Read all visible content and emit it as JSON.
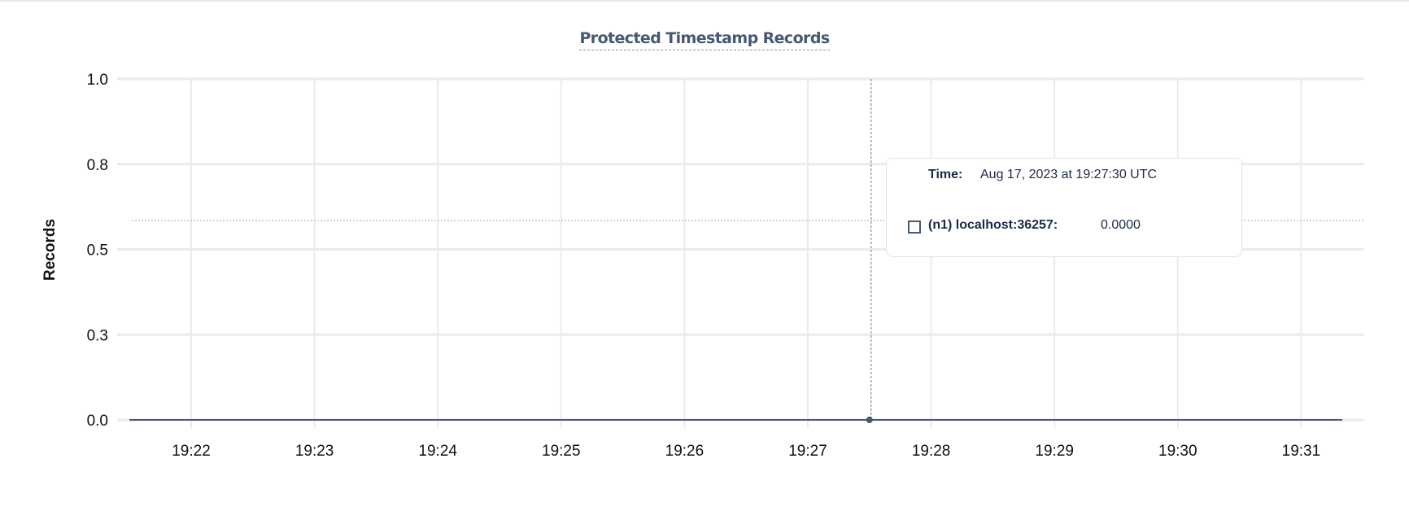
{
  "chart_data": {
    "type": "line",
    "title": "Protected Timestamp Records",
    "ylabel": "Records",
    "xlabel": "",
    "ylim": [
      0,
      1
    ],
    "xlim": [
      "19:21:30",
      "19:31:20"
    ],
    "grid": true,
    "y_ticks": [
      {
        "value": 0,
        "label": "0.0"
      },
      {
        "value": 0.25,
        "label": "0.3"
      },
      {
        "value": 0.5,
        "label": "0.5"
      },
      {
        "value": 0.75,
        "label": "0.8"
      },
      {
        "value": 1,
        "label": "1.0"
      }
    ],
    "x_ticks": [
      "19:22",
      "19:23",
      "19:24",
      "19:25",
      "19:26",
      "19:27",
      "19:28",
      "19:29",
      "19:30",
      "19:31"
    ],
    "series": [
      {
        "name": "(n1) localhost:36257",
        "color": "#475872",
        "points": [
          [
            "19:21:30",
            0
          ],
          [
            "19:27:30",
            0
          ],
          [
            "19:31:20",
            0
          ]
        ]
      }
    ],
    "hover_x": "19:27:30"
  },
  "tooltip": {
    "time_label": "Time:",
    "time_value": "Aug 17, 2023 at 19:27:30 UTC",
    "series_label": "(n1) localhost:36257:",
    "series_value": "0.0000"
  }
}
